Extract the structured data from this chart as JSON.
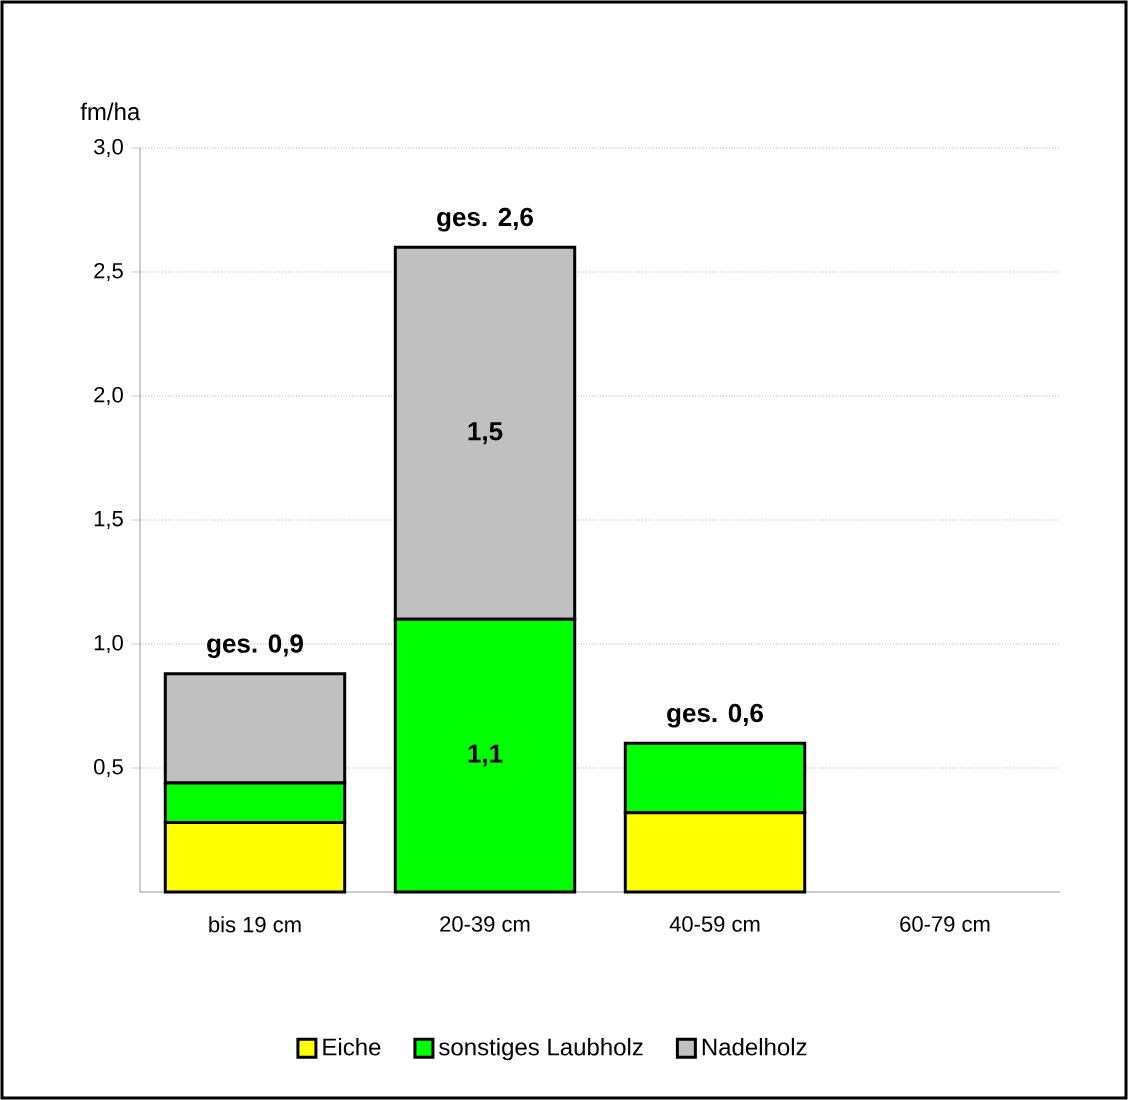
{
  "chart_data": {
    "type": "bar",
    "stacked": true,
    "ylabel": "fm/ha",
    "categories": [
      "bis 19 cm",
      "20-39 cm",
      "40-59 cm",
      "60-79 cm"
    ],
    "series": [
      {
        "name": "Eiche",
        "color": "#ffff00",
        "values": [
          0.28,
          0,
          0.32,
          0
        ]
      },
      {
        "name": "sonstiges Laubholz",
        "color": "#00ff00",
        "values": [
          0.16,
          1.1,
          0.28,
          0
        ],
        "value_labels": [
          null,
          "1,1",
          null,
          null
        ]
      },
      {
        "name": "Nadelholz",
        "color": "#c0c0c0",
        "values": [
          0.44,
          1.5,
          0,
          0
        ],
        "value_labels": [
          null,
          "1,5",
          null,
          null
        ]
      }
    ],
    "totals": [
      "ges. 0,9",
      "ges. 2,6",
      "ges. 0,6",
      null
    ],
    "ylim": [
      0,
      3
    ],
    "yticks": [
      {
        "value": 0.5,
        "label": "0,5"
      },
      {
        "value": 1.0,
        "label": "1,0"
      },
      {
        "value": 1.5,
        "label": "1,5"
      },
      {
        "value": 2.0,
        "label": "2,0"
      },
      {
        "value": 2.5,
        "label": "2,5"
      },
      {
        "value": 3.0,
        "label": "3,0"
      }
    ],
    "grid": "y",
    "legend": "bottom"
  }
}
